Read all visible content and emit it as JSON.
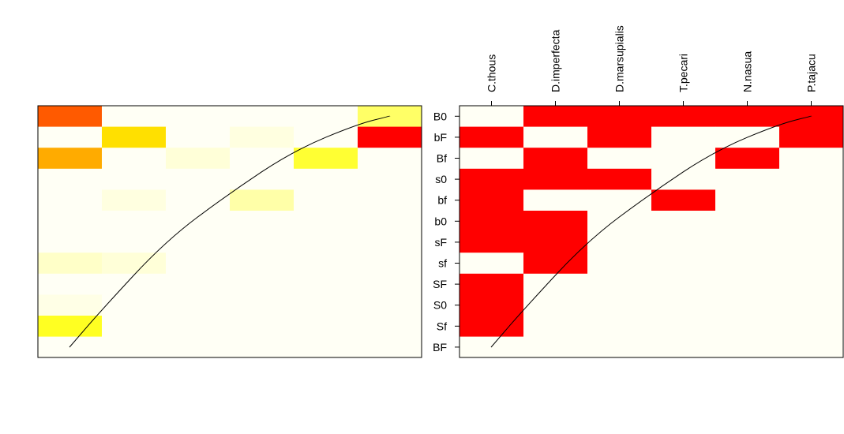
{
  "chart_data": [
    {
      "type": "heatmap",
      "title": "",
      "xlabel": "",
      "ylabel": "",
      "columns": [
        "C.thous",
        "D.imperfecta",
        "D.marsupialis",
        "T.pecari",
        "N.nasua",
        "P.tajacu"
      ],
      "rows": [
        "B0",
        "bF",
        "Bf",
        "s0",
        "bf",
        "b0",
        "sF",
        "sf",
        "SF",
        "S0",
        "Sf",
        "BF"
      ],
      "colors": [
        [
          "#ff5a00",
          "#fffff5",
          "#fffff5",
          "#fffff5",
          "#fffff5",
          "#ffff66"
        ],
        [
          "#fffff5",
          "#ffe000",
          "#fffff5",
          "#ffffe0",
          "#fffff5",
          "#ff0000"
        ],
        [
          "#ffab00",
          "#fffff5",
          "#ffffd8",
          "#fffff5",
          "#ffff33",
          "#fffff5"
        ],
        [
          "#fffff5",
          "#fffff5",
          "#fffff5",
          "#fffff5",
          "#fffff5",
          "#fffff5"
        ],
        [
          "#fffff5",
          "#ffffe0",
          "#fffff5",
          "#ffffa8",
          "#fffff5",
          "#fffff5"
        ],
        [
          "#fffff5",
          "#fffff5",
          "#fffff5",
          "#fffff5",
          "#fffff5",
          "#fffff5"
        ],
        [
          "#fffff5",
          "#fffff5",
          "#fffff5",
          "#fffff5",
          "#fffff5",
          "#fffff5"
        ],
        [
          "#ffffc8",
          "#ffffd8",
          "#fffff5",
          "#fffff5",
          "#fffff5",
          "#fffff5"
        ],
        [
          "#fffff5",
          "#fffff5",
          "#fffff5",
          "#fffff5",
          "#fffff5",
          "#fffff5"
        ],
        [
          "#ffffe6",
          "#fffff5",
          "#fffff5",
          "#fffff5",
          "#fffff5",
          "#fffff5"
        ],
        [
          "#ffff22",
          "#fffff5",
          "#fffff5",
          "#fffff5",
          "#fffff5",
          "#fffff5"
        ],
        [
          "#fffff5",
          "#fffff5",
          "#fffff5",
          "#fffff5",
          "#fffff5",
          "#fffff5"
        ]
      ],
      "curve": [
        [
          0.5,
          0.6
        ],
        [
          1.0,
          1.3
        ],
        [
          2.0,
          2.6
        ],
        [
          3.0,
          3.5
        ],
        [
          4.0,
          4.3
        ],
        [
          5.0,
          4.8
        ],
        [
          5.5,
          4.95
        ]
      ]
    },
    {
      "type": "heatmap",
      "title": "",
      "xlabel": "",
      "ylabel": "",
      "columns": [
        "C.thous",
        "D.imperfecta",
        "D.marsupialis",
        "T.pecari",
        "N.nasua",
        "P.tajacu"
      ],
      "rows": [
        "B0",
        "bF",
        "Bf",
        "s0",
        "bf",
        "b0",
        "sF",
        "sf",
        "SF",
        "S0",
        "Sf",
        "BF"
      ],
      "presence": [
        [
          0,
          1,
          1,
          1,
          1,
          1
        ],
        [
          1,
          0,
          1,
          0,
          0,
          1
        ],
        [
          0,
          1,
          0,
          0,
          1,
          0
        ],
        [
          1,
          1,
          1,
          0,
          0,
          0
        ],
        [
          1,
          0,
          0,
          1,
          0,
          0
        ],
        [
          1,
          1,
          0,
          0,
          0,
          0
        ],
        [
          1,
          1,
          0,
          0,
          0,
          0
        ],
        [
          0,
          1,
          0,
          0,
          0,
          0
        ],
        [
          1,
          0,
          0,
          0,
          0,
          0
        ],
        [
          1,
          0,
          0,
          0,
          0,
          0
        ],
        [
          1,
          0,
          0,
          0,
          0,
          0
        ],
        [
          0,
          0,
          0,
          0,
          0,
          0
        ]
      ],
      "present_color": "#ff0000",
      "absent_color": "#fffff5",
      "curve": [
        [
          0.5,
          0.6
        ],
        [
          1.0,
          1.3
        ],
        [
          2.0,
          2.6
        ],
        [
          3.0,
          3.5
        ],
        [
          4.0,
          4.3
        ],
        [
          5.0,
          4.8
        ],
        [
          5.5,
          4.95
        ]
      ]
    }
  ]
}
